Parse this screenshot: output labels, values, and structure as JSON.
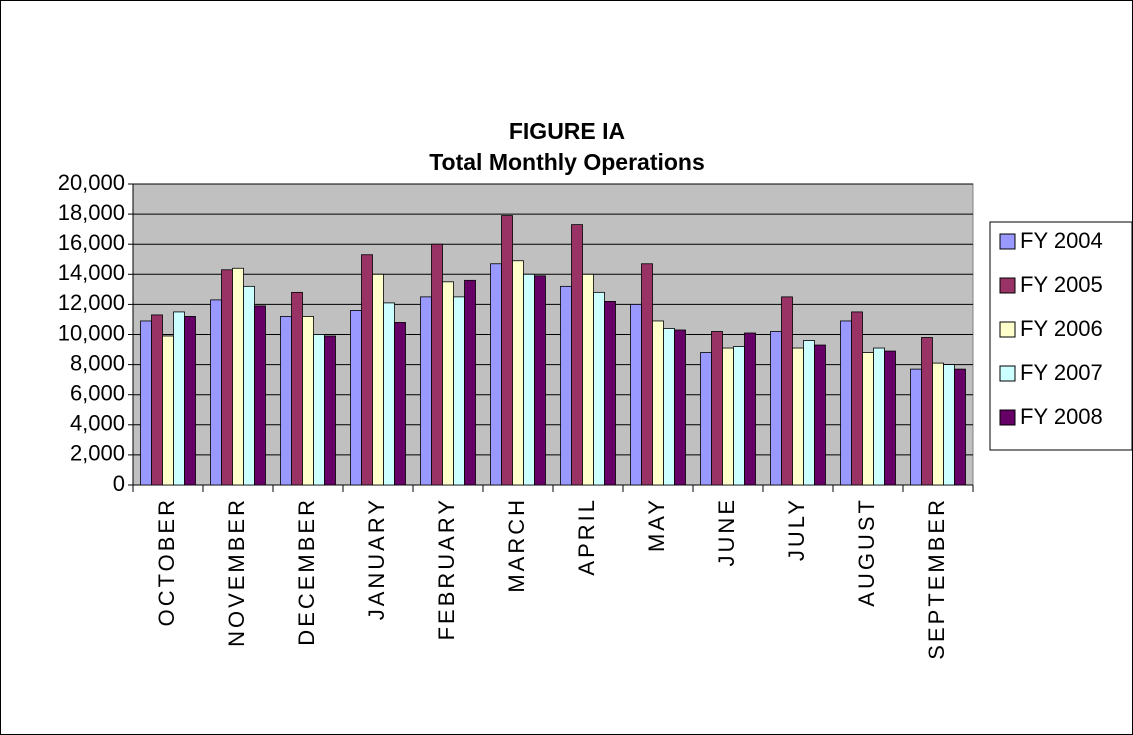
{
  "chart_data": {
    "type": "bar",
    "title": "FIGURE IA",
    "subtitle": "Total Monthly Operations",
    "categories": [
      "OCTOBER",
      "NOVEMBER",
      "DECEMBER",
      "JANUARY",
      "FEBRUARY",
      "MARCH",
      "APRIL",
      "MAY",
      "JUNE",
      "JULY",
      "AUGUST",
      "SEPTEMBER"
    ],
    "series": [
      {
        "name": "FY 2004",
        "color": "#9999ff",
        "values": [
          10900,
          12300,
          11200,
          11600,
          12500,
          14700,
          13200,
          12000,
          8800,
          10200,
          10900,
          7700
        ]
      },
      {
        "name": "FY 2005",
        "color": "#993366",
        "values": [
          11300,
          14300,
          12800,
          15300,
          16000,
          17900,
          17300,
          14700,
          10200,
          12500,
          11500,
          9800
        ]
      },
      {
        "name": "FY 2006",
        "color": "#ffffcc",
        "values": [
          9900,
          14400,
          11200,
          14000,
          13500,
          14900,
          14000,
          10900,
          9100,
          9100,
          8800,
          8100
        ]
      },
      {
        "name": "FY 2007",
        "color": "#ccffff",
        "values": [
          11500,
          13200,
          10000,
          12100,
          12500,
          14000,
          12800,
          10400,
          9200,
          9600,
          9100,
          8000
        ]
      },
      {
        "name": "FY 2008",
        "color": "#660066",
        "values": [
          11200,
          11900,
          9900,
          10800,
          13600,
          13900,
          12200,
          10300,
          10100,
          9300,
          8900,
          7700
        ]
      }
    ],
    "ylim": [
      0,
      20000
    ],
    "yticks": [
      0,
      {
        "value": 2000,
        "label": "2,000"
      },
      {
        "value": 4000,
        "label": "4,000"
      },
      {
        "value": 6000,
        "label": "6,000"
      },
      {
        "value": 8000,
        "label": "8,000"
      },
      {
        "value": 10000,
        "label": "10,000"
      },
      {
        "value": 12000,
        "label": "12,000"
      },
      {
        "value": 14000,
        "label": "14,000"
      },
      {
        "value": 16000,
        "label": "16,000"
      },
      {
        "value": 18000,
        "label": "18,000"
      },
      {
        "value": 20000,
        "label": "20,000"
      }
    ],
    "grid": true,
    "legend": "right"
  }
}
